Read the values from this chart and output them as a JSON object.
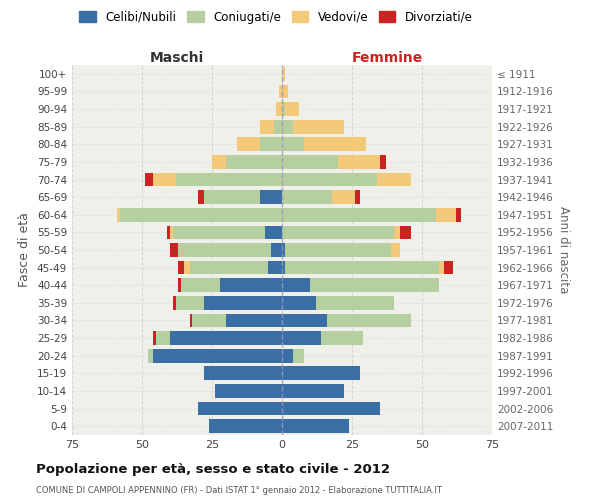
{
  "age_groups": [
    "0-4",
    "5-9",
    "10-14",
    "15-19",
    "20-24",
    "25-29",
    "30-34",
    "35-39",
    "40-44",
    "45-49",
    "50-54",
    "55-59",
    "60-64",
    "65-69",
    "70-74",
    "75-79",
    "80-84",
    "85-89",
    "90-94",
    "95-99",
    "100+"
  ],
  "birth_years": [
    "2007-2011",
    "2002-2006",
    "1997-2001",
    "1992-1996",
    "1987-1991",
    "1982-1986",
    "1977-1981",
    "1972-1976",
    "1967-1971",
    "1962-1966",
    "1957-1961",
    "1952-1956",
    "1947-1951",
    "1942-1946",
    "1937-1941",
    "1932-1936",
    "1927-1931",
    "1922-1926",
    "1917-1921",
    "1912-1916",
    "≤ 1911"
  ],
  "maschi": {
    "celibi": [
      26,
      30,
      24,
      28,
      46,
      40,
      20,
      28,
      22,
      5,
      4,
      6,
      0,
      8,
      0,
      0,
      0,
      0,
      0,
      0,
      0
    ],
    "coniugati": [
      0,
      0,
      0,
      0,
      2,
      5,
      12,
      10,
      14,
      28,
      33,
      33,
      58,
      20,
      38,
      20,
      8,
      3,
      0,
      0,
      0
    ],
    "vedovi": [
      0,
      0,
      0,
      0,
      0,
      0,
      0,
      0,
      0,
      2,
      0,
      1,
      1,
      0,
      8,
      5,
      8,
      5,
      2,
      1,
      0
    ],
    "divorziati": [
      0,
      0,
      0,
      0,
      0,
      1,
      1,
      1,
      1,
      2,
      3,
      1,
      0,
      2,
      3,
      0,
      0,
      0,
      0,
      0,
      0
    ]
  },
  "femmine": {
    "nubili": [
      24,
      35,
      22,
      28,
      4,
      14,
      16,
      12,
      10,
      1,
      1,
      0,
      0,
      0,
      0,
      0,
      0,
      0,
      0,
      0,
      0
    ],
    "coniugate": [
      0,
      0,
      0,
      0,
      4,
      15,
      30,
      28,
      46,
      55,
      38,
      40,
      55,
      18,
      34,
      20,
      8,
      4,
      1,
      0,
      0
    ],
    "vedove": [
      0,
      0,
      0,
      0,
      0,
      0,
      0,
      0,
      0,
      2,
      3,
      2,
      7,
      8,
      12,
      15,
      22,
      18,
      5,
      2,
      1
    ],
    "divorziate": [
      0,
      0,
      0,
      0,
      0,
      0,
      0,
      0,
      0,
      3,
      0,
      4,
      2,
      2,
      0,
      2,
      0,
      0,
      0,
      0,
      0
    ]
  },
  "colors": {
    "celibi": "#3a6ea5",
    "coniugati": "#b5cfa0",
    "vedovi": "#f5c97a",
    "divorziati": "#cc2222"
  },
  "title": "Popolazione per età, sesso e stato civile - 2012",
  "subtitle": "COMUNE DI CAMPOLI APPENNINO (FR) - Dati ISTAT 1° gennaio 2012 - Elaborazione TUTTITALIA.IT",
  "xlabel_maschi": "Maschi",
  "xlabel_femmine": "Femmine",
  "ylabel": "Fasce di età",
  "ylabel_right": "Anni di nascita",
  "xlim": 75,
  "bg_color": "#ffffff",
  "plot_bg": "#f0f0eb",
  "grid_color": "#d0d0d0"
}
